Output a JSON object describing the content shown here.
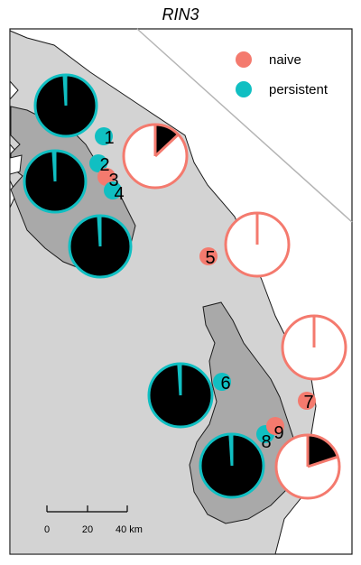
{
  "title": "RIN3",
  "colors": {
    "naive": "#f47a6e",
    "persistent": "#10bfc2",
    "dark_fill": "#000000",
    "region_light": "#d3d3d3",
    "region_dark": "#a9a9a9",
    "border": "#1a1a1a"
  },
  "legend": {
    "naive_label": "naive",
    "persistent_label": "persistent"
  },
  "sites": [
    {
      "label": "1",
      "group": "persistent"
    },
    {
      "label": "2",
      "group": "persistent"
    },
    {
      "label": "3",
      "group": "naive"
    },
    {
      "label": "4",
      "group": "persistent"
    },
    {
      "label": "5",
      "group": "naive"
    },
    {
      "label": "6",
      "group": "persistent"
    },
    {
      "label": "7",
      "group": "naive"
    },
    {
      "label": "8",
      "group": "persistent"
    },
    {
      "label": "9",
      "group": "naive"
    }
  ],
  "pies": [
    {
      "group": "persistent",
      "fraction_black": 0.99
    },
    {
      "group": "persistent",
      "fraction_black": 0.99
    },
    {
      "group": "persistent",
      "fraction_black": 0.99
    },
    {
      "group": "persistent",
      "fraction_black": 0.99
    },
    {
      "group": "persistent",
      "fraction_black": 0.99
    },
    {
      "group": "naive",
      "fraction_black": 0.13
    },
    {
      "group": "naive",
      "fraction_black": 0.0
    },
    {
      "group": "naive",
      "fraction_black": 0.0
    },
    {
      "group": "naive",
      "fraction_black": 0.2
    }
  ],
  "scale": {
    "tick_labels": [
      "0",
      "20",
      "40 km"
    ]
  }
}
